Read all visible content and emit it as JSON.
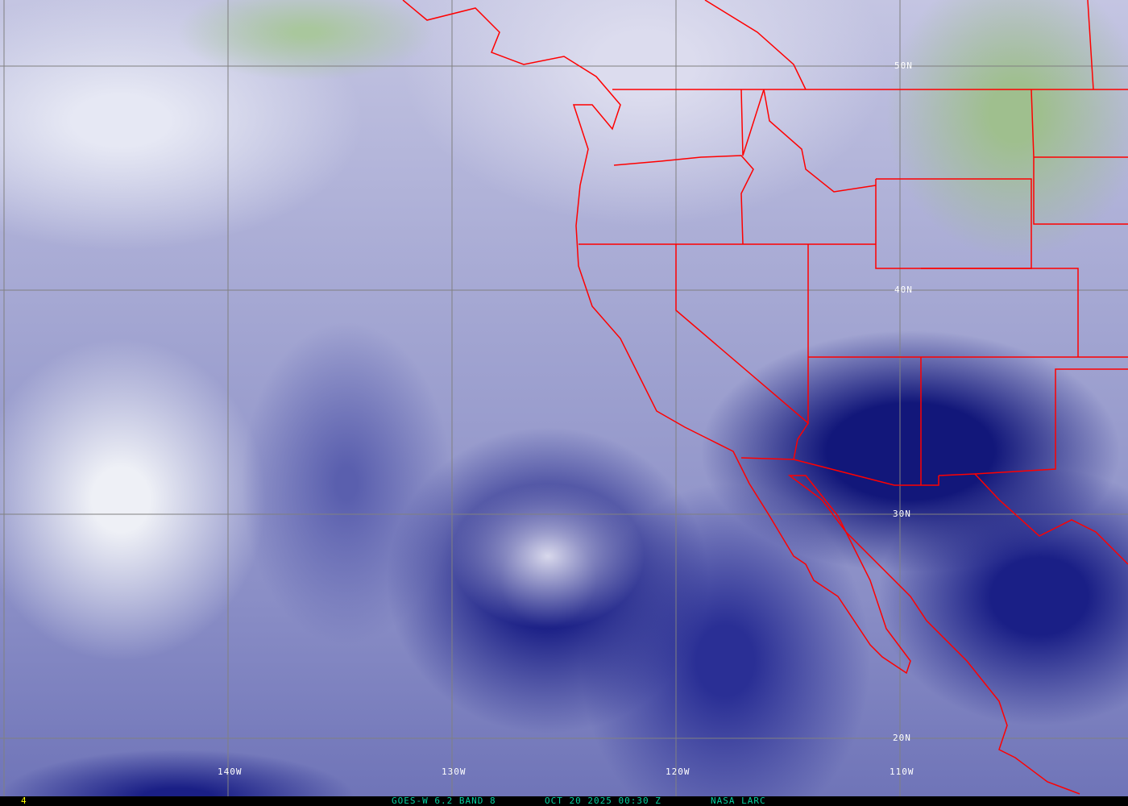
{
  "image": {
    "satellite": "GOES-W",
    "channel": "6.2",
    "band": "BAND 8",
    "date": "OCT 20 2025",
    "time": "00:30 Z",
    "source": "NASA LARC",
    "frame": "4"
  },
  "footer": {
    "frame": "4",
    "product": "GOES-W 6.2 BAND 8",
    "timestamp": "OCT 20 2025 00:30 Z",
    "credit": "NASA LARC"
  },
  "grid": {
    "latitudes": [
      "50N",
      "40N",
      "30N",
      "20N"
    ],
    "longitudes": [
      "140W",
      "130W",
      "120W",
      "110W"
    ]
  },
  "colors": {
    "grid": "#808080",
    "borders": "#ff0000",
    "footer_text": "#00d0a0",
    "frame_text": "#ffff00",
    "label_text": "#ffffff"
  }
}
